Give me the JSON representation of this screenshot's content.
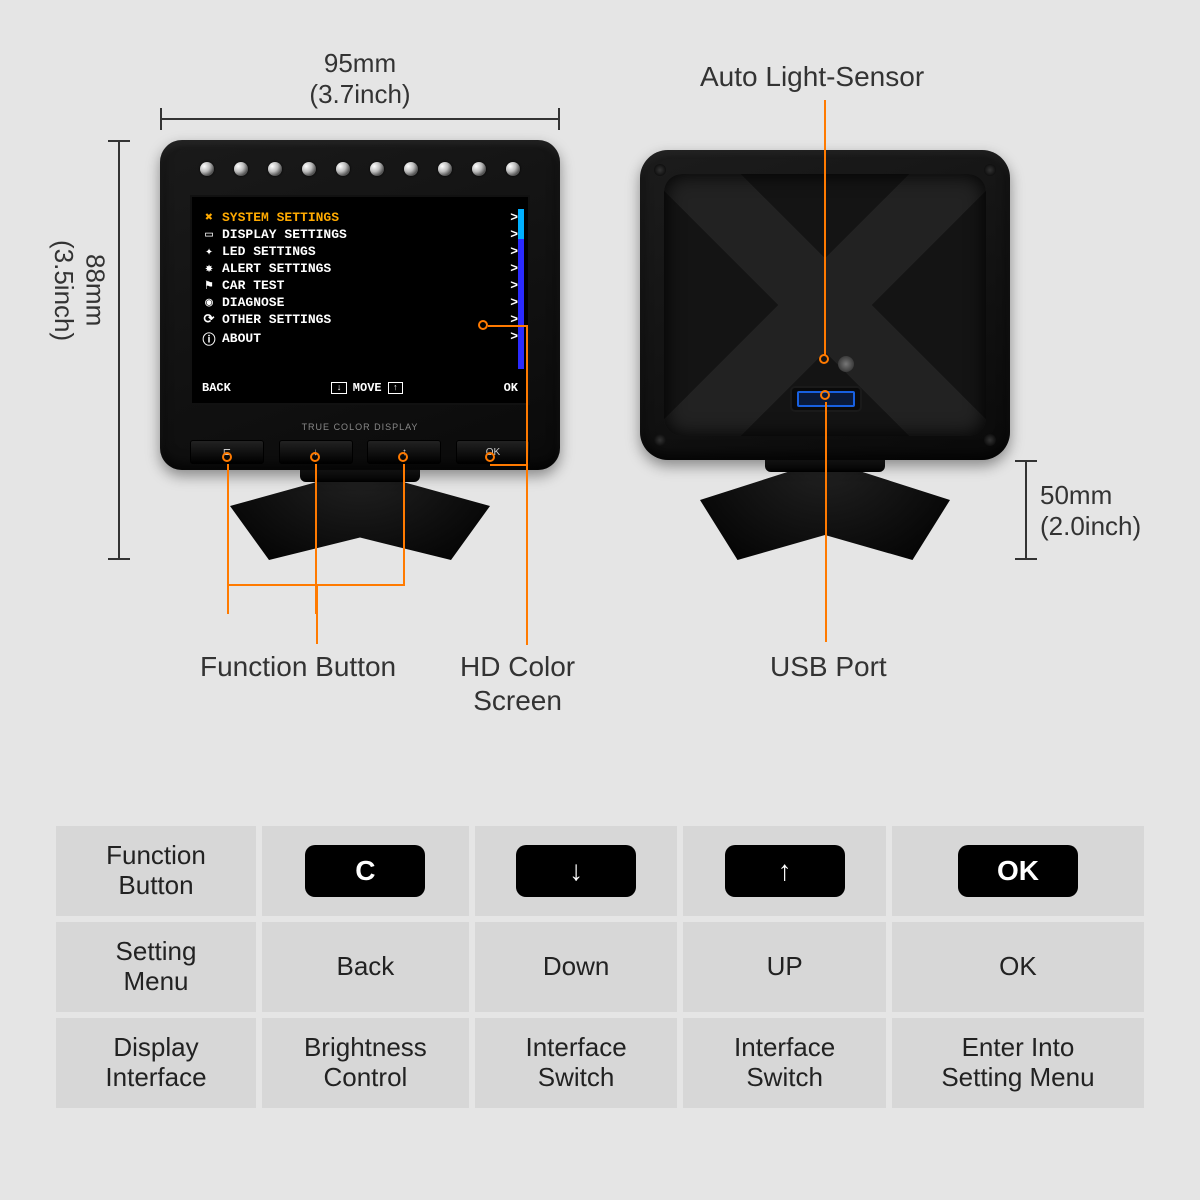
{
  "colors": {
    "bg": "#e5e5e5",
    "accent": "#ff7a00",
    "menu_selected": "#ffaa00",
    "scrollbar": "#2b2bff",
    "scroll_thumb": "#00b0ff",
    "text": "#333333"
  },
  "dimensions": {
    "width_label": "95mm\n(3.7inch)",
    "height_label": "88mm\n(3.5inch)",
    "stand_label": "50mm\n(2.0inch)"
  },
  "callouts": {
    "light_sensor": "Auto Light-Sensor",
    "function_button": "Function Button",
    "hd_screen": "HD Color\nScreen",
    "usb_port": "USB Port"
  },
  "screen": {
    "footer_back": "BACK",
    "footer_move": "MOVE",
    "footer_ok": "OK",
    "true_color": "TRUE COLOR DISPLAY",
    "items": [
      {
        "icon": "✖",
        "label": "SYSTEM SETTINGS",
        "selected": true
      },
      {
        "icon": "▭",
        "label": "DISPLAY SETTINGS",
        "selected": false
      },
      {
        "icon": "✦",
        "label": "LED SETTINGS",
        "selected": false
      },
      {
        "icon": "✸",
        "label": "ALERT SETTINGS",
        "selected": false
      },
      {
        "icon": "⚑",
        "label": "CAR TEST",
        "selected": false
      },
      {
        "icon": "◉",
        "label": "DIAGNOSE",
        "selected": false
      },
      {
        "icon": "⟳",
        "label": "OTHER SETTINGS",
        "selected": false
      },
      {
        "icon": "ⓘ",
        "label": "ABOUT",
        "selected": false
      }
    ]
  },
  "buttons": {
    "c": "C",
    "down": "↓",
    "up": "↑",
    "ok": "OK"
  },
  "table": {
    "headers": [
      "Function\nButton",
      "Setting\nMenu",
      "Display\nInterface"
    ],
    "cols": [
      {
        "key": "C",
        "setting": "Back",
        "display": "Brightness\nControl"
      },
      {
        "key": "↓",
        "setting": "Down",
        "display": "Interface\nSwitch"
      },
      {
        "key": "↑",
        "setting": "UP",
        "display": "Interface\nSwitch"
      },
      {
        "key": "OK",
        "setting": "OK",
        "display": "Enter Into\nSetting Menu"
      }
    ]
  }
}
